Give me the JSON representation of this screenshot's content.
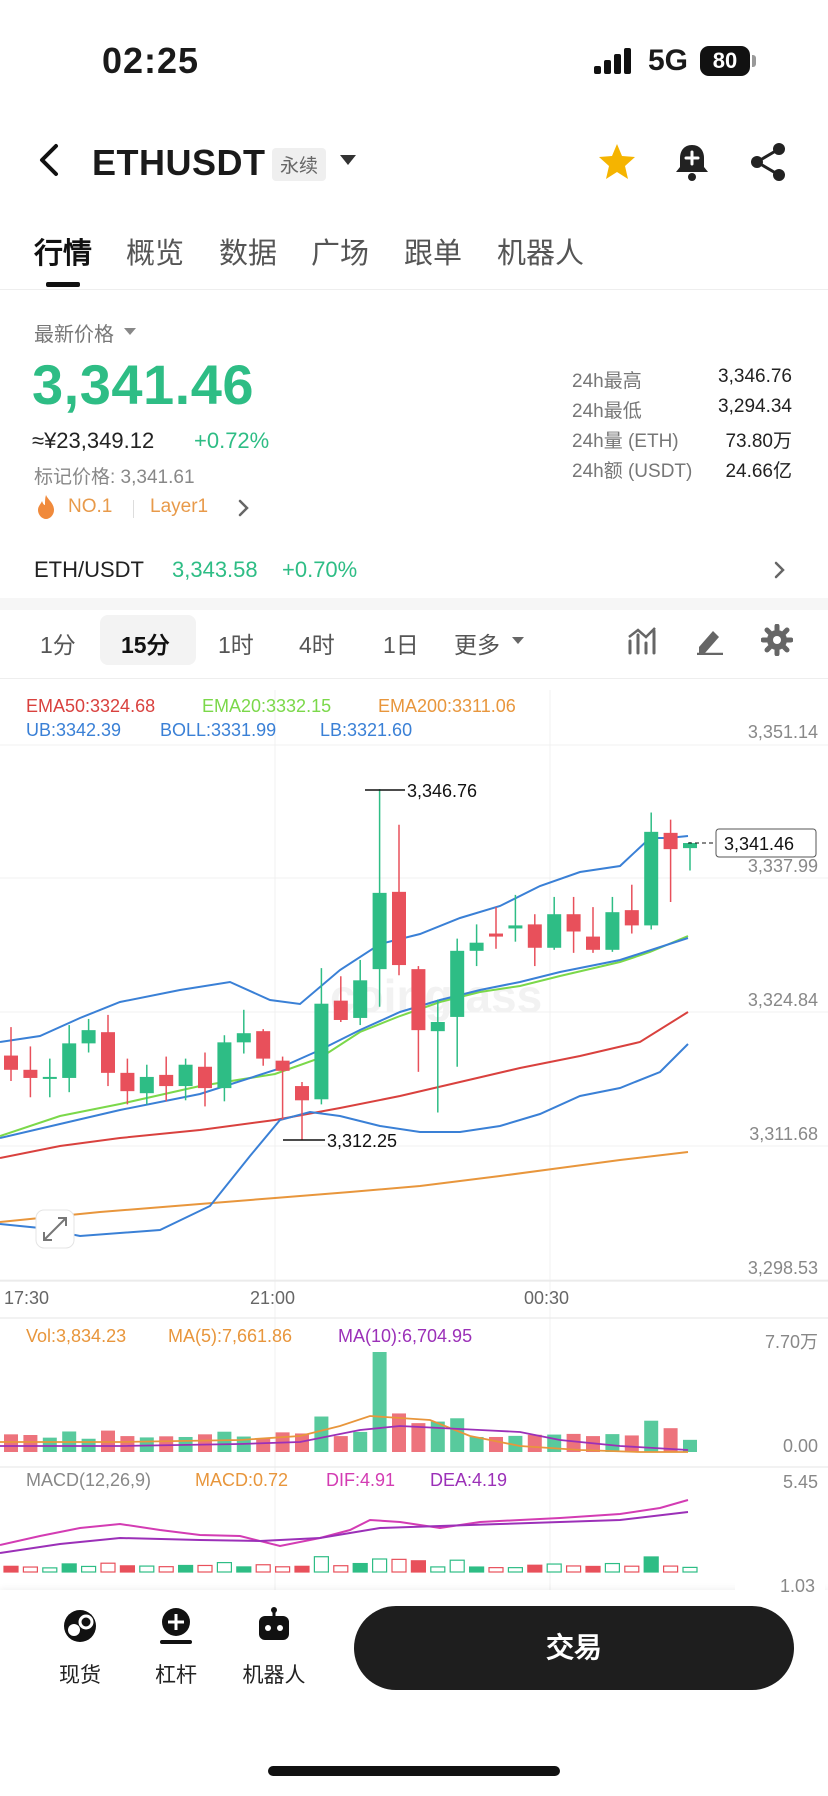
{
  "status": {
    "time": "02:25",
    "network": "5G",
    "battery": "80"
  },
  "header": {
    "symbol": "ETHUSDT",
    "contract_tag": "永续"
  },
  "tabs": [
    "行情",
    "概览",
    "数据",
    "广场",
    "跟单",
    "机器人"
  ],
  "price_block": {
    "latest_label": "最新价格",
    "last_price": "3,341.46",
    "cny_value": "≈¥23,349.12",
    "change_pct": "+0.72%",
    "mark_price": "标记价格: 3,341.61",
    "tag_rank": "NO.1",
    "tag_sector": "Layer1",
    "stats": [
      {
        "label": "24h最高",
        "value": "3,346.76"
      },
      {
        "label": "24h最低",
        "value": "3,294.34"
      },
      {
        "label": "24h量 (ETH)",
        "value": "73.80万"
      },
      {
        "label": "24h额 (USDT)",
        "value": "24.66亿"
      }
    ]
  },
  "spot": {
    "pair": "ETH/USDT",
    "price": "3,343.58",
    "change": "+0.70%"
  },
  "timeframes": {
    "items": [
      "1分",
      "15分",
      "1时",
      "4时",
      "1日",
      "更多"
    ],
    "active": "15分"
  },
  "indicators": {
    "ema50": "EMA50:3324.68",
    "ema20": "EMA20:3332.15",
    "ema200": "EMA200:3311.06",
    "ub": "UB:3342.39",
    "boll": "BOLL:3331.99",
    "lb": "LB:3321.60",
    "vol": "Vol:3,834.23",
    "ma5": "MA(5):7,661.86",
    "ma10": "MA(10):6,704.95",
    "macd_title": "MACD(12,26,9)",
    "macd": "MACD:0.72",
    "dif": "DIF:4.91",
    "dea": "DEA:4.19"
  },
  "axes": {
    "price_ticks": [
      "3,351.14",
      "3,337.99",
      "3,324.84",
      "3,311.68",
      "3,298.53"
    ],
    "time_ticks": [
      "17:30",
      "21:00",
      "00:30"
    ],
    "vol_ticks": [
      "7.70万",
      "0.00"
    ],
    "macd_ticks": [
      "5.45",
      "1.03"
    ]
  },
  "annotations": {
    "high": "3,346.76",
    "low": "3,312.25",
    "current": "3,341.46"
  },
  "colors": {
    "up": "#2ebd85",
    "down": "#e8505b",
    "ema50": "#d9413e",
    "ema20": "#7bd84a",
    "ema200": "#e8963c",
    "boll": "#3a80d6",
    "ma10": "#9b30b8"
  },
  "chart_data": {
    "type": "candlestick",
    "timeframe": "15分",
    "candles": [
      {
        "o": 3320.6,
        "h": 3323.4,
        "l": 3318.1,
        "c": 3319.2
      },
      {
        "o": 3319.2,
        "h": 3321.5,
        "l": 3316.5,
        "c": 3318.4
      },
      {
        "o": 3318.4,
        "h": 3320.3,
        "l": 3316.5,
        "c": 3318.5
      },
      {
        "o": 3318.4,
        "h": 3323.6,
        "l": 3317.0,
        "c": 3321.8
      },
      {
        "o": 3321.8,
        "h": 3324.2,
        "l": 3320.9,
        "c": 3323.1
      },
      {
        "o": 3322.9,
        "h": 3324.6,
        "l": 3317.6,
        "c": 3318.9
      },
      {
        "o": 3318.9,
        "h": 3320.3,
        "l": 3315.8,
        "c": 3317.1
      },
      {
        "o": 3316.9,
        "h": 3319.7,
        "l": 3315.8,
        "c": 3318.5
      },
      {
        "o": 3318.7,
        "h": 3320.5,
        "l": 3316.1,
        "c": 3317.6
      },
      {
        "o": 3317.6,
        "h": 3320.3,
        "l": 3316.2,
        "c": 3319.7
      },
      {
        "o": 3319.5,
        "h": 3320.9,
        "l": 3315.6,
        "c": 3317.4
      },
      {
        "o": 3317.4,
        "h": 3322.6,
        "l": 3316.1,
        "c": 3321.9
      },
      {
        "o": 3321.9,
        "h": 3325.1,
        "l": 3320.8,
        "c": 3322.8
      },
      {
        "o": 3323.0,
        "h": 3323.2,
        "l": 3319.6,
        "c": 3320.3
      },
      {
        "o": 3320.1,
        "h": 3320.5,
        "l": 3314.3,
        "c": 3319.1
      },
      {
        "o": 3317.6,
        "h": 3318.0,
        "l": 3312.3,
        "c": 3316.2
      },
      {
        "o": 3316.3,
        "h": 3329.2,
        "l": 3315.8,
        "c": 3325.7
      },
      {
        "o": 3326.0,
        "h": 3328.4,
        "l": 3323.9,
        "c": 3324.1
      },
      {
        "o": 3324.3,
        "h": 3330.0,
        "l": 3323.6,
        "c": 3328.0
      },
      {
        "o": 3329.1,
        "h": 3346.8,
        "l": 3325.4,
        "c": 3336.6
      },
      {
        "o": 3336.7,
        "h": 3343.3,
        "l": 3328.5,
        "c": 3329.5
      },
      {
        "o": 3329.1,
        "h": 3329.4,
        "l": 3319.0,
        "c": 3323.1
      },
      {
        "o": 3323.0,
        "h": 3326.1,
        "l": 3315.0,
        "c": 3323.9
      },
      {
        "o": 3324.4,
        "h": 3332.1,
        "l": 3319.5,
        "c": 3330.9
      },
      {
        "o": 3330.9,
        "h": 3333.5,
        "l": 3329.4,
        "c": 3331.7
      },
      {
        "o": 3332.6,
        "h": 3335.2,
        "l": 3331.1,
        "c": 3332.3
      },
      {
        "o": 3333.1,
        "h": 3336.4,
        "l": 3331.8,
        "c": 3333.4
      },
      {
        "o": 3333.5,
        "h": 3334.5,
        "l": 3329.4,
        "c": 3331.2
      },
      {
        "o": 3331.2,
        "h": 3336.2,
        "l": 3331.0,
        "c": 3334.5
      },
      {
        "o": 3334.5,
        "h": 3336.2,
        "l": 3330.7,
        "c": 3332.8
      },
      {
        "o": 3332.3,
        "h": 3335.2,
        "l": 3330.7,
        "c": 3331.0
      },
      {
        "o": 3331.0,
        "h": 3336.2,
        "l": 3330.8,
        "c": 3334.7
      },
      {
        "o": 3334.9,
        "h": 3337.4,
        "l": 3332.6,
        "c": 3333.4
      },
      {
        "o": 3333.4,
        "h": 3344.5,
        "l": 3333.0,
        "c": 3342.6
      },
      {
        "o": 3342.5,
        "h": 3343.8,
        "l": 3335.7,
        "c": 3340.9
      },
      {
        "o": 3341.0,
        "h": 3341.6,
        "l": 3338.8,
        "c": 3341.5
      }
    ],
    "volume_bar_count": 36,
    "price_range": [
      3298.53,
      3351.14
    ],
    "y_ticks": [
      3351.14,
      3337.99,
      3324.84,
      3311.68,
      3298.53
    ],
    "x_ticks": [
      "17:30",
      "21:00",
      "00:30"
    ],
    "last_price": 3341.46
  }
}
